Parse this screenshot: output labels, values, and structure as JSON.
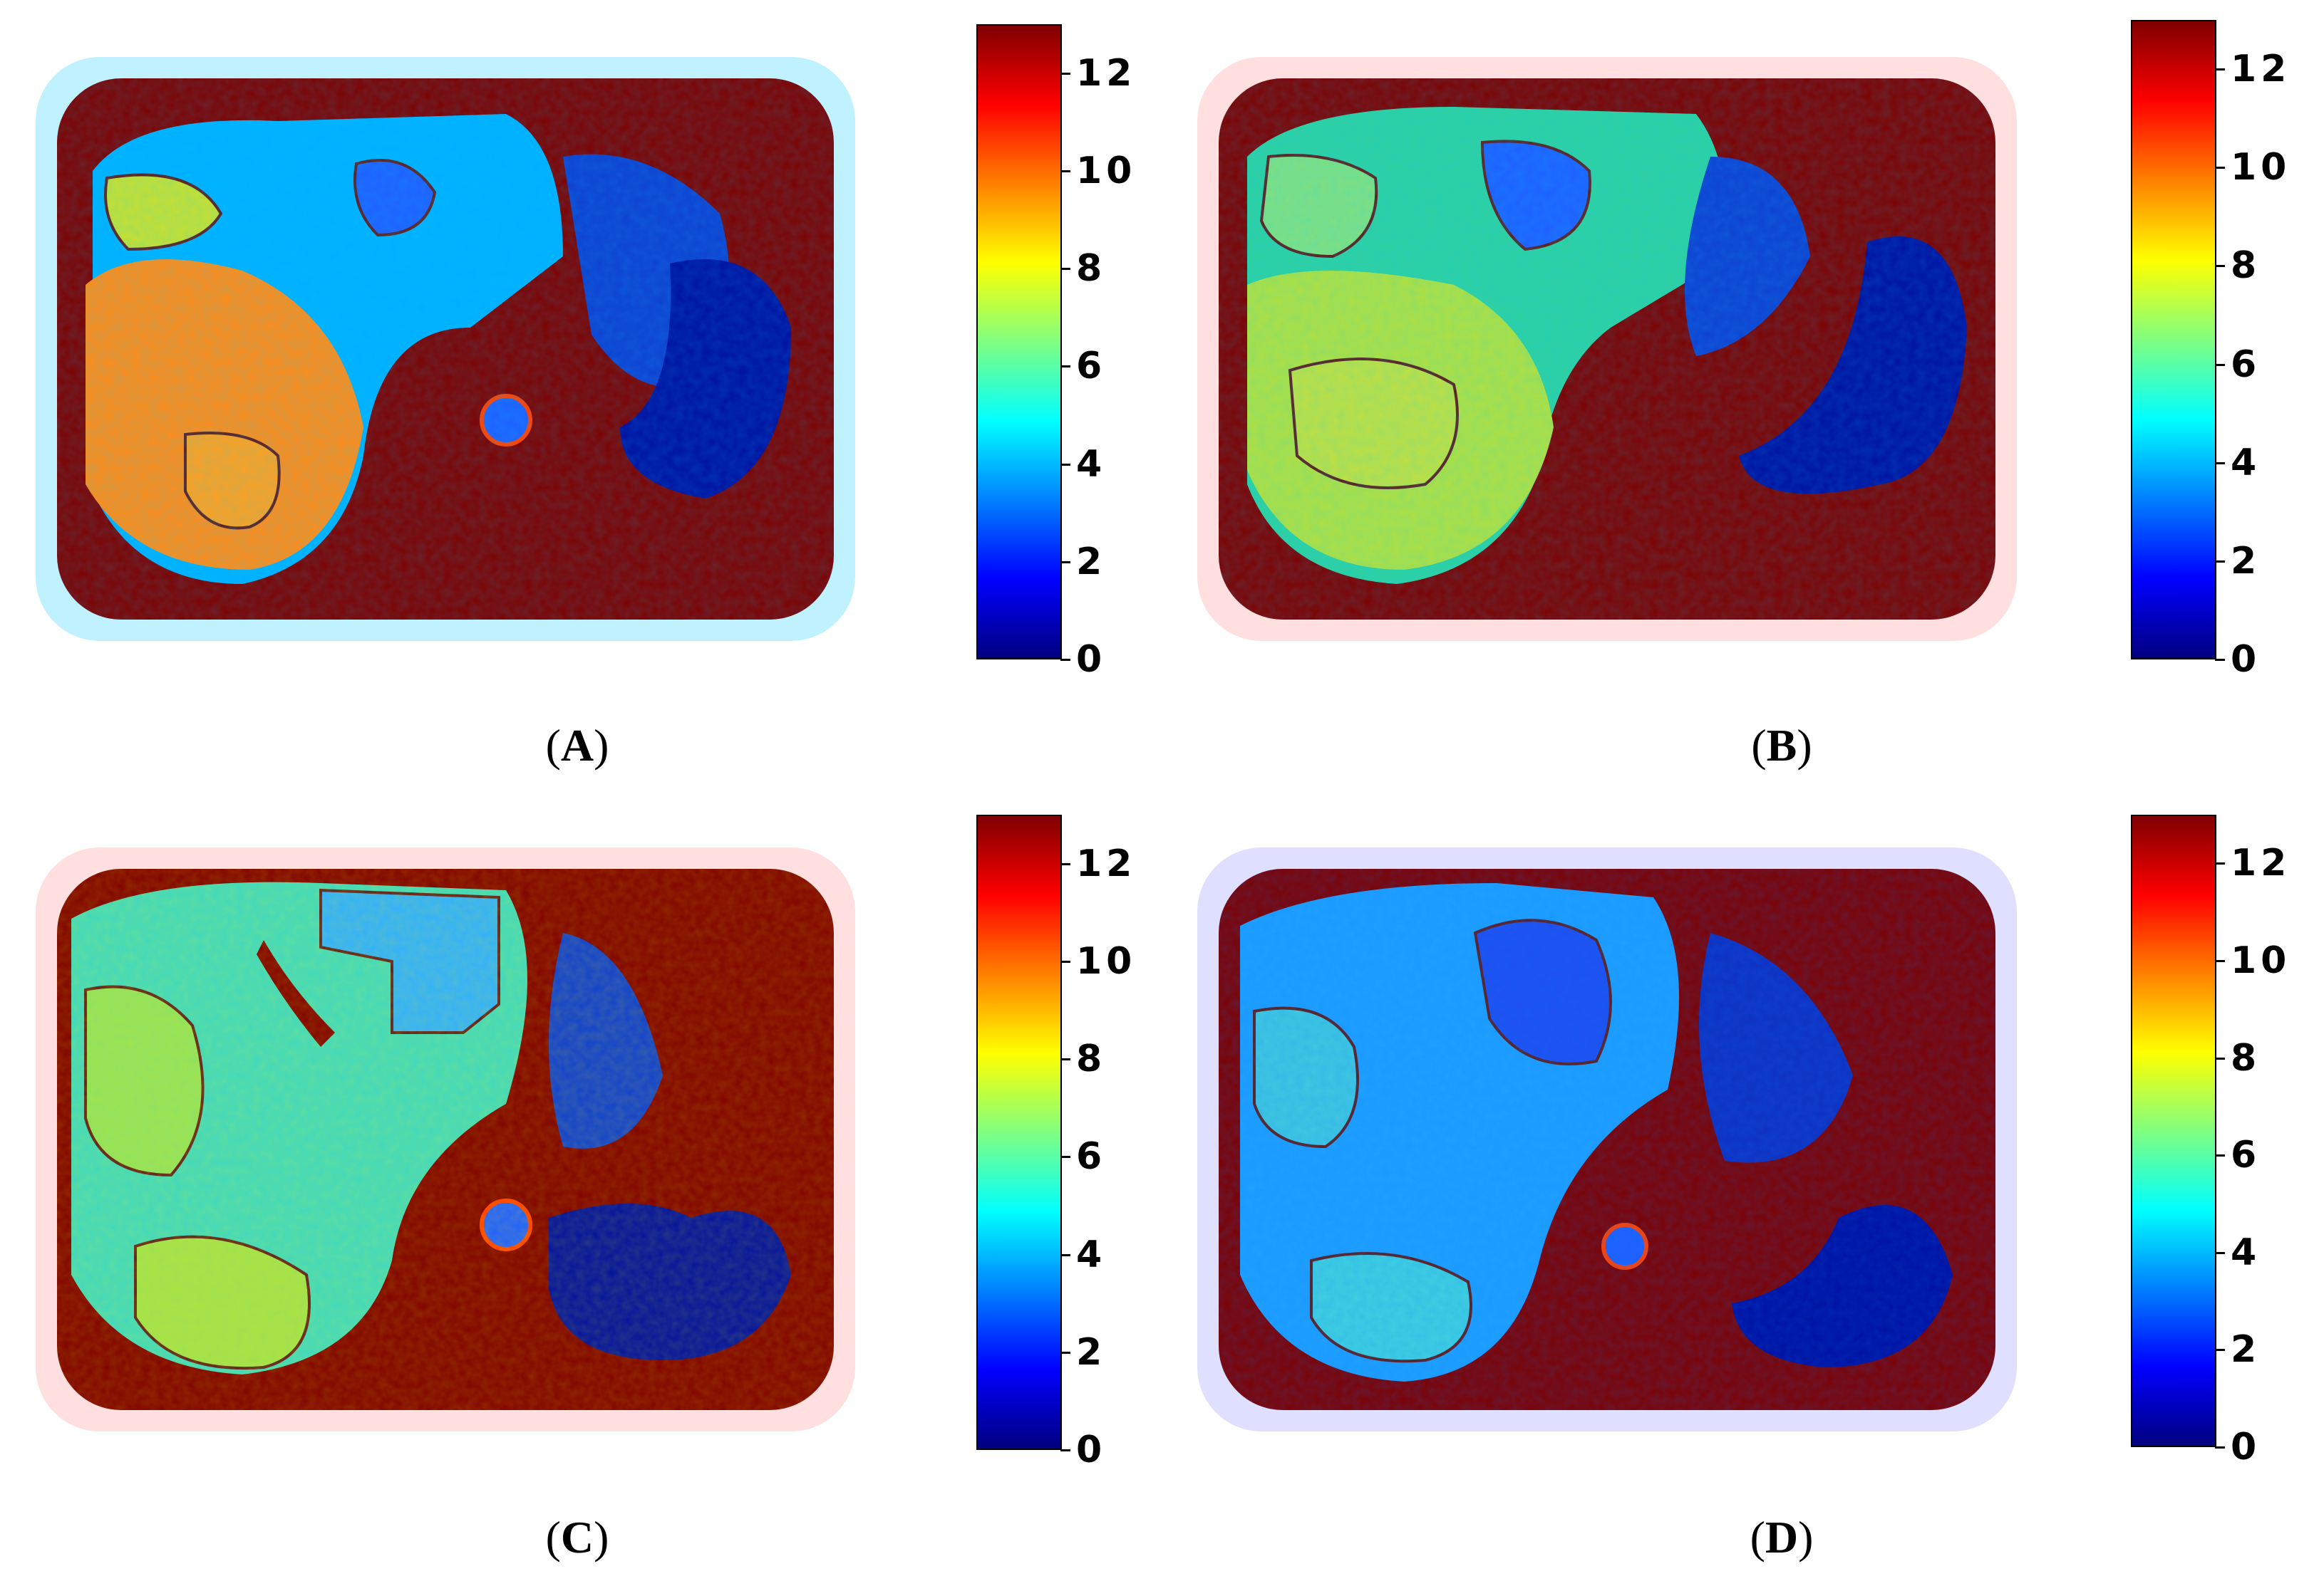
{
  "panels": [
    {
      "id": "A",
      "label_prefix": "(",
      "label": "A",
      "label_suffix": ")"
    },
    {
      "id": "B",
      "label_prefix": "(",
      "label": "B",
      "label_suffix": ")"
    },
    {
      "id": "C",
      "label_prefix": "(",
      "label": "C",
      "label_suffix": ")"
    },
    {
      "id": "D",
      "label_prefix": "(",
      "label": "D",
      "label_suffix": ")"
    }
  ],
  "colorbar": {
    "colormap": "jet",
    "range": [
      0,
      13
    ],
    "tick_labels": [
      "0",
      "2",
      "4",
      "6",
      "8",
      "10",
      "12"
    ],
    "colors": [
      "#00007f",
      "#0000ff",
      "#0080ff",
      "#00ffff",
      "#80ff80",
      "#ffff00",
      "#ff8000",
      "#ff0000",
      "#7f0000"
    ]
  }
}
